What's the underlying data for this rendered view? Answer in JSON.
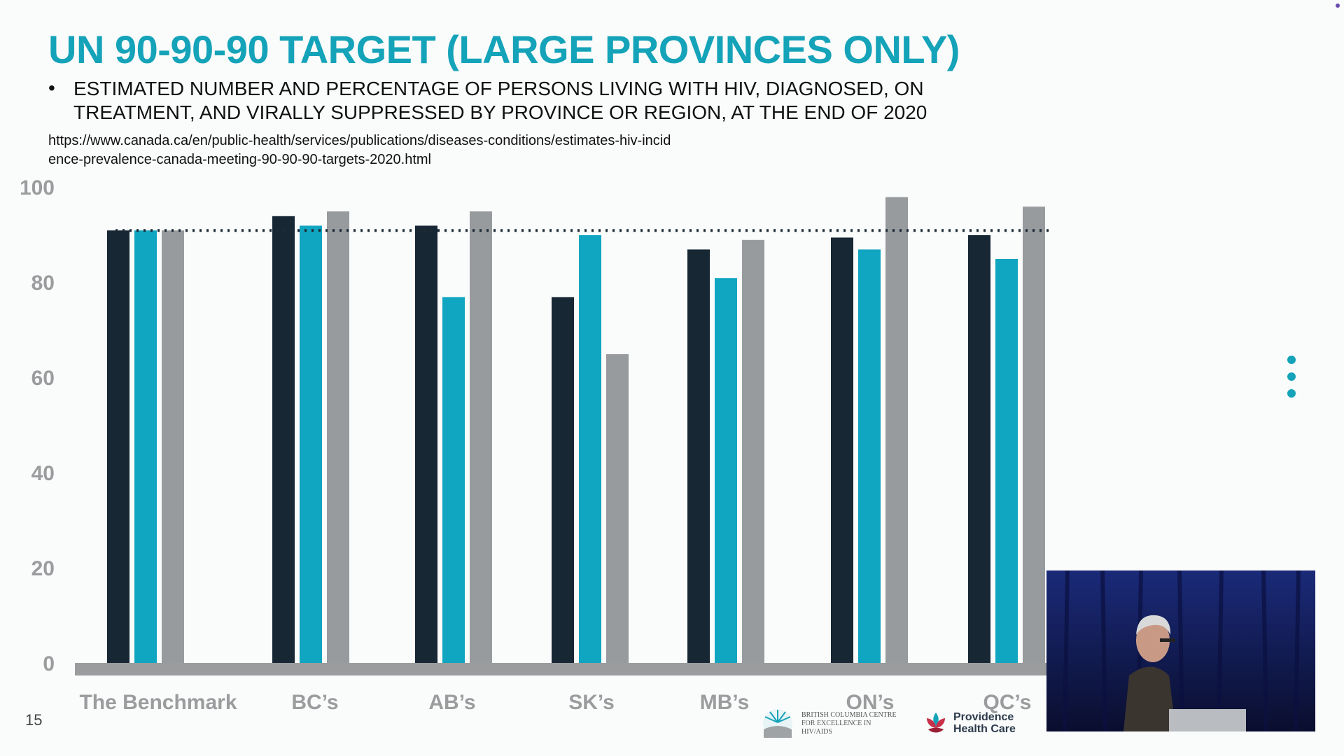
{
  "slide": {
    "title": "UN 90-90-90 TARGET (LARGE PROVINCES ONLY)",
    "bullet": "•",
    "subtitle": "ESTIMATED NUMBER AND PERCENTAGE OF PERSONS LIVING WITH HIV, DIAGNOSED, ON TREATMENT, AND VIRALLY SUPPRESSED BY PROVINCE OR REGION, AT THE END OF 2020",
    "source_url": "https://www.canada.ca/en/public-health/services/publications/diseases-conditions/estimates-hiv-incidence-prevalence-canada-meeting-90-90-90-targets-2020.html",
    "slide_number": "15",
    "logo_bccfe_text": "BRITISH COLUMBIA CENTRE for EXCELLENCE in HIV/AIDS",
    "logo_phc_text": "Providence Health Care"
  },
  "colors": {
    "accent": "#14a3b8",
    "series_1": "#172734",
    "series_2": "#10a5c0",
    "series_3": "#989b9e",
    "axis": "#9a9c9e",
    "benchmark_line": "#1d2a36"
  },
  "icons": [
    "more-vertical-icon",
    "bccfe-logo-icon",
    "providence-logo-icon"
  ],
  "chart_data": {
    "type": "bar",
    "categories": [
      "The Benchmark",
      "BC’s",
      "AB’s",
      "SK’s",
      "MB’s",
      "ON’s",
      "QC’s"
    ],
    "series": [
      {
        "values": [
          91,
          94,
          92,
          77,
          87,
          89.5,
          90
        ]
      },
      {
        "values": [
          91,
          92,
          77,
          90,
          81,
          87,
          85
        ]
      },
      {
        "values": [
          91,
          95,
          95,
          65,
          89,
          98,
          96
        ]
      }
    ],
    "ylim": [
      0,
      100
    ],
    "yticks": [
      0,
      20,
      40,
      60,
      80,
      100
    ],
    "reference_line": 91,
    "grid": false,
    "legend": "none"
  }
}
